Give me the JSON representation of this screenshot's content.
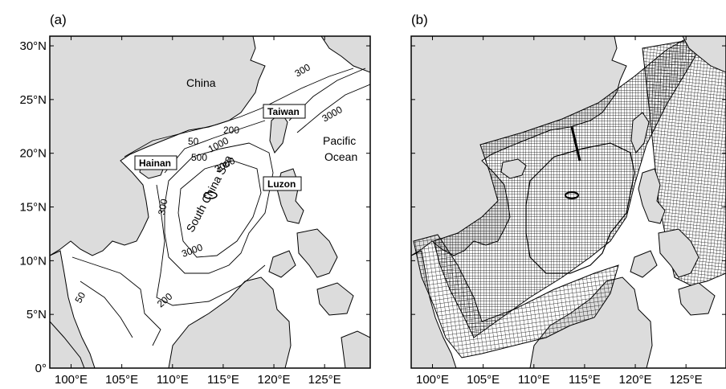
{
  "panels": [
    {
      "label": "(a)",
      "place_names": {
        "china": "China",
        "pacific_line1": "Pacific",
        "pacific_line2": "Ocean",
        "sea": "South China Sea"
      },
      "boxed_labels": {
        "hainan": "Hainan",
        "taiwan": "Taiwan",
        "luzon": "Luzon"
      },
      "contour_labels": {
        "c50_north": "50",
        "c200_north": "200",
        "c500": "500",
        "c1000": "1000",
        "c3000_center": "3000",
        "c3000_south": "3000",
        "c300_ne": "300",
        "c3000_ne": "3000",
        "c50_south": "50",
        "c200_south": "200",
        "c300_west": "300"
      }
    },
    {
      "label": "(b)"
    }
  ],
  "x_ticks": [
    "100°E",
    "105°E",
    "110°E",
    "115°E",
    "120°E",
    "125°E"
  ],
  "y_ticks": [
    "30°N",
    "25°N",
    "20°N",
    "15°N",
    "10°N",
    "5°N",
    "0°"
  ],
  "colors": {
    "land": "#dcdcdc",
    "ocean": "#ffffff",
    "coastline": "#000000",
    "grid_mesh": "#000000"
  }
}
